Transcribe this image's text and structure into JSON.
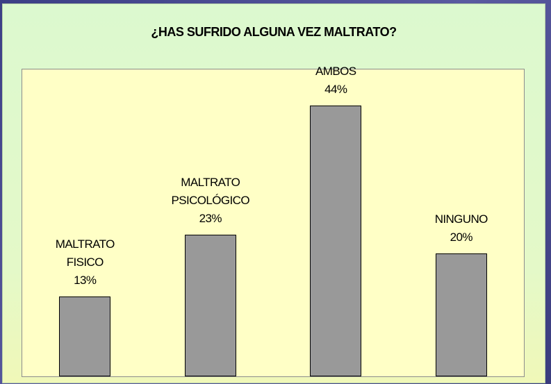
{
  "chart_data": {
    "type": "bar",
    "title": "¿HAS SUFRIDO ALGUNA VEZ MALTRATO?",
    "categories": [
      "MALTRATO FISICO",
      "MALTRATO PSICOLÓGICO",
      "AMBOS",
      "NINGUNO"
    ],
    "values": [
      13,
      23,
      44,
      20
    ],
    "value_labels": [
      "13%",
      "23%",
      "44%",
      "20%"
    ],
    "color": "#999999"
  }
}
